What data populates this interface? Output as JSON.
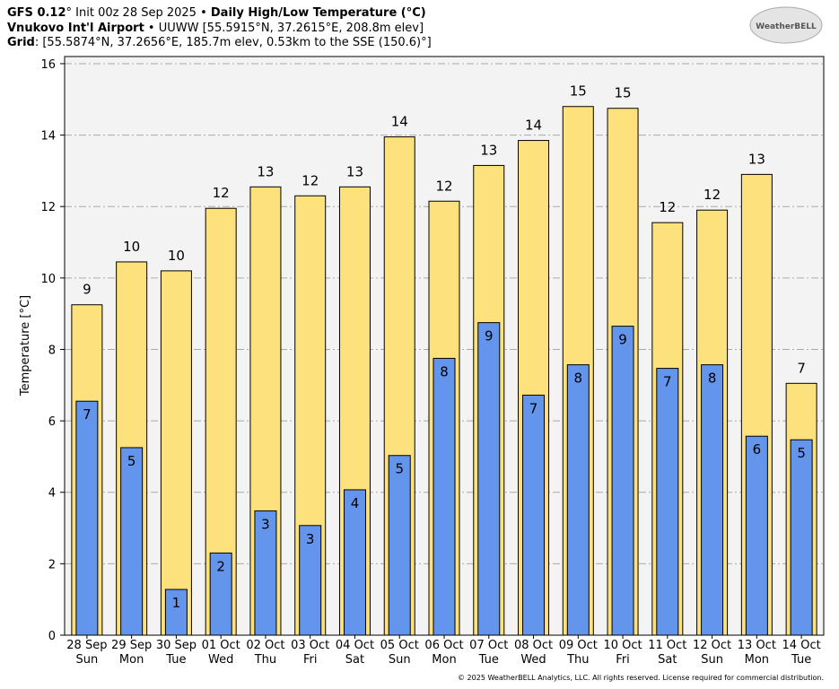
{
  "chart_data": {
    "type": "bar",
    "header": {
      "model": "GFS 0.12",
      "degree": "°",
      "init": " Init 00z 28 Sep 2025 • ",
      "title": "Daily High/Low Temperature (°C)",
      "station": "Vnukovo Int'l Airport",
      "station_info": " • UUWW [55.5915°N, 37.2615°E, 208.8m elev]",
      "grid_label": "Grid",
      "grid_info": ": [55.5874°N, 37.2656°E, 185.7m elev, 0.53km to the SSE (150.6)°]"
    },
    "logo": "WeatherBELL",
    "ylabel": "Temperature [°C]",
    "footer": "© 2025 WeatherBELL Analytics, LLC. All rights reserved. License required for commercial distribution.",
    "categories": [
      "28 Sep",
      "29 Sep",
      "30 Sep",
      "01 Oct",
      "02 Oct",
      "03 Oct",
      "04 Oct",
      "05 Oct",
      "06 Oct",
      "07 Oct",
      "08 Oct",
      "09 Oct",
      "10 Oct",
      "11 Oct",
      "12 Oct",
      "13 Oct",
      "14 Oct"
    ],
    "weekdays": [
      "Sun",
      "Mon",
      "Tue",
      "Wed",
      "Thu",
      "Fri",
      "Sat",
      "Sun",
      "Mon",
      "Tue",
      "Wed",
      "Thu",
      "Fri",
      "Sat",
      "Sun",
      "Mon",
      "Tue"
    ],
    "series": [
      {
        "name": "High",
        "color": "#fde17c",
        "values": [
          9.25,
          10.45,
          10.2,
          11.95,
          12.55,
          12.3,
          12.55,
          13.95,
          12.15,
          13.15,
          13.85,
          14.8,
          14.75,
          11.55,
          11.9,
          12.9,
          7.05
        ],
        "value_labels": [
          "9",
          "10",
          "10",
          "12",
          "13",
          "12",
          "13",
          "14",
          "12",
          "13",
          "14",
          "15",
          "15",
          "12",
          "12",
          "13",
          "7"
        ]
      },
      {
        "name": "Low",
        "color": "#6495ed",
        "values": [
          6.55,
          5.25,
          1.28,
          2.3,
          3.48,
          3.07,
          4.07,
          5.03,
          7.75,
          8.75,
          6.72,
          7.57,
          8.65,
          7.47,
          7.57,
          5.57,
          5.47
        ],
        "value_labels": [
          "7",
          "5",
          "1",
          "2",
          "3",
          "3",
          "4",
          "5",
          "8",
          "9",
          "7",
          "8",
          "9",
          "7",
          "8",
          "6",
          "5"
        ]
      }
    ],
    "ylim": [
      0,
      16.2
    ],
    "yticks": [
      0,
      2,
      4,
      6,
      8,
      10,
      12,
      14,
      16
    ],
    "grid": true
  }
}
